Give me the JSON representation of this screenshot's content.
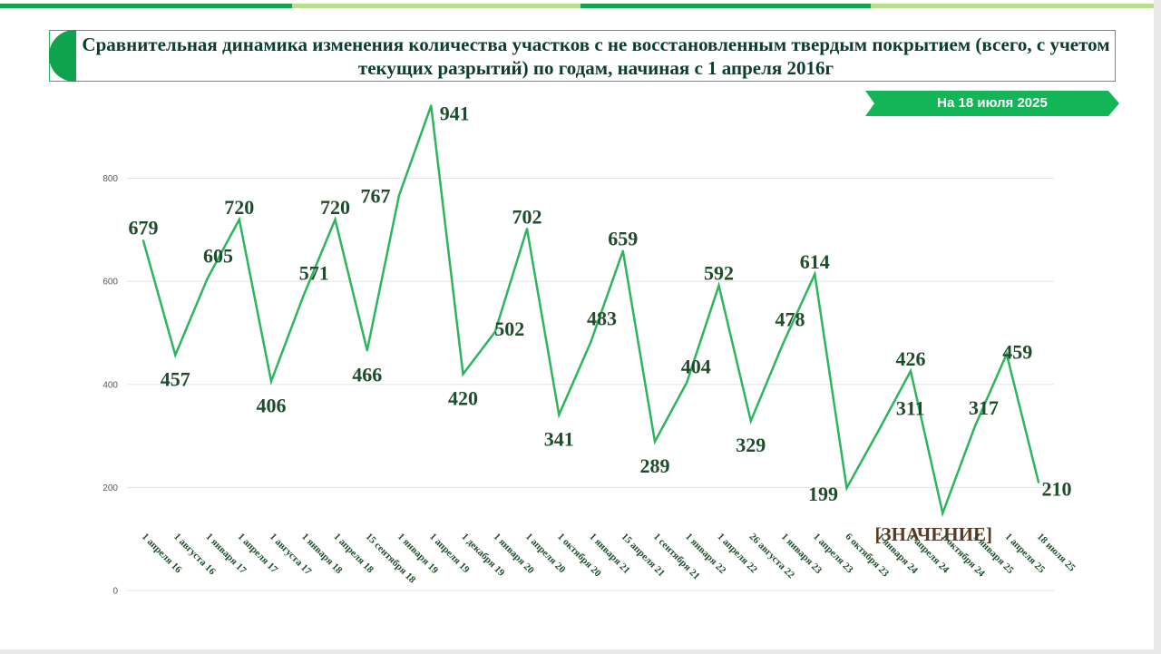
{
  "title": "Сравнительная динамика изменения количества участков с не восстановленным твердым покрытием (всего, с учетом текущих разрытий) по годам, начиная с 1 апреля 2016г",
  "date_badge": "На  18 июля 2025",
  "colors": {
    "line": "#2db55d",
    "accent": "#0fa34e",
    "value_label": "#1e4d2b",
    "placeholder": "#5a3a22",
    "grid": "#e3e3e3"
  },
  "chart_data": {
    "type": "line",
    "title": "Сравнительная динамика изменения количества участков с не восстановленным твердым покрытием (всего, с учетом текущих разрытий) по годам, начиная с 1 апреля 2016г",
    "xlabel": "",
    "ylabel": "",
    "ylim": [
      0,
      1000
    ],
    "yticks": [
      0,
      200,
      400,
      600,
      800
    ],
    "grid": true,
    "legend": "none",
    "categories": [
      "1 апреля 16",
      "1 августа 16",
      "1 января 17",
      "1 апреля 17",
      "1 августа 17",
      "1 января 18",
      "1 апреля 18",
      "15 сентября 18",
      "1 января 19",
      "1 апреля 19",
      "1 декабря 19",
      "1 января 20",
      "1 апреля 20",
      "1 октября 20",
      "1 января 21",
      "15 апреля 21",
      "1 сентября 21",
      "1 января 22",
      "1 апреля 22",
      "26 августа 22",
      "1 января 23",
      "1 апреля 23",
      "6 октября 23",
      "1 января 24",
      "1 апреля 24",
      "1 октября 24",
      "1 января 25",
      "1 апреля 25",
      "18 июля 25"
    ],
    "values": [
      679,
      457,
      605,
      720,
      406,
      571,
      720,
      466,
      767,
      941,
      420,
      502,
      702,
      341,
      483,
      659,
      289,
      404,
      592,
      329,
      478,
      614,
      199,
      311,
      426,
      150,
      317,
      459,
      210
    ],
    "data_labels": [
      "679",
      "457",
      "605",
      "720",
      "406",
      "571",
      "720",
      "466",
      "767",
      "941",
      "420",
      "502",
      "702",
      "341",
      "483",
      "659",
      "289",
      "404",
      "592",
      "329",
      "478",
      "614",
      "199",
      "311",
      "426",
      "[ЗНАЧЕНИЕ]",
      "317",
      "459",
      "210"
    ]
  }
}
